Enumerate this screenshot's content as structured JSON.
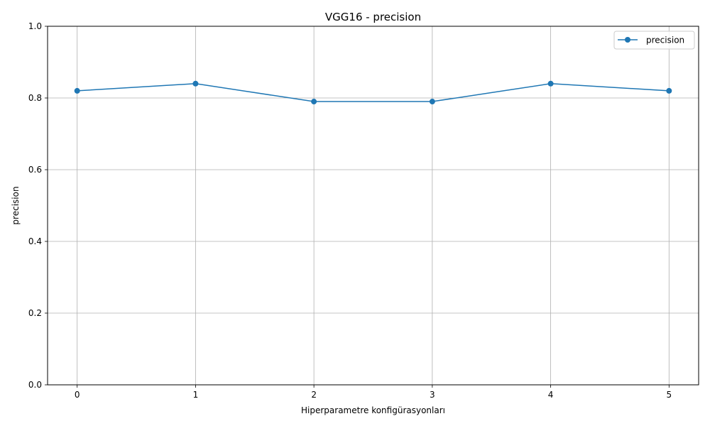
{
  "chart_data": {
    "type": "line",
    "title": "VGG16 - precision",
    "xlabel": "Hiperparametre konfigürasyonları",
    "ylabel": "precision",
    "x": [
      0,
      1,
      2,
      3,
      4,
      5
    ],
    "xticks": [
      "0",
      "1",
      "2",
      "3",
      "4",
      "5"
    ],
    "yticks": [
      "0.0",
      "0.2",
      "0.4",
      "0.6",
      "0.8",
      "1.0"
    ],
    "ylim": [
      0,
      1
    ],
    "grid": true,
    "legend_position": "top-right",
    "series": [
      {
        "name": "precision",
        "color": "#1f77b4",
        "marker": "circle",
        "values": [
          0.82,
          0.84,
          0.79,
          0.79,
          0.84,
          0.82
        ]
      }
    ]
  }
}
